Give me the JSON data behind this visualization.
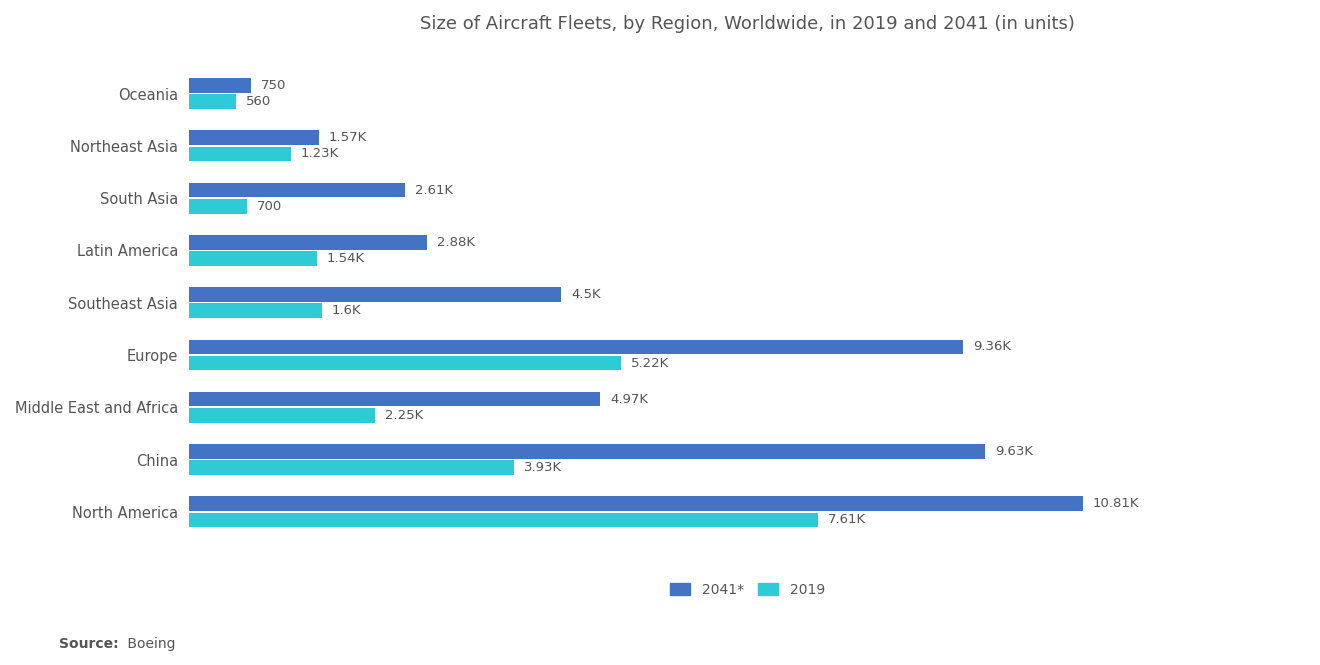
{
  "title": "Size of Aircraft Fleets, by Region, Worldwide, in 2019 and 2041 (in units)",
  "categories": [
    "North America",
    "China",
    "Middle East and Africa",
    "Europe",
    "Southeast Asia",
    "Latin America",
    "South Asia",
    "Northeast Asia",
    "Oceania"
  ],
  "values_2041": [
    10810,
    9630,
    4970,
    9360,
    4500,
    2880,
    2610,
    1570,
    750
  ],
  "values_2019": [
    7610,
    3930,
    2250,
    5220,
    1600,
    1540,
    700,
    1230,
    560
  ],
  "labels_2041": [
    "10.81K",
    "9.63K",
    "4.97K",
    "9.36K",
    "4.5K",
    "2.88K",
    "2.61K",
    "1.57K",
    "750"
  ],
  "labels_2019": [
    "7.61K",
    "3.93K",
    "2.25K",
    "5.22K",
    "1.6K",
    "1.54K",
    "700",
    "1.23K",
    "560"
  ],
  "color_2041": "#4472C4",
  "color_2019": "#2ECAD6",
  "legend_labels": [
    "2041*",
    "2019"
  ],
  "source_bold": "Source:",
  "source_rest": " Boeing",
  "background_color": "#FFFFFF",
  "title_fontsize": 13,
  "label_fontsize": 9.5,
  "tick_fontsize": 10.5,
  "source_fontsize": 10,
  "legend_fontsize": 10,
  "bar_height": 0.28,
  "bar_gap": 0.03,
  "xlim_max": 13500
}
